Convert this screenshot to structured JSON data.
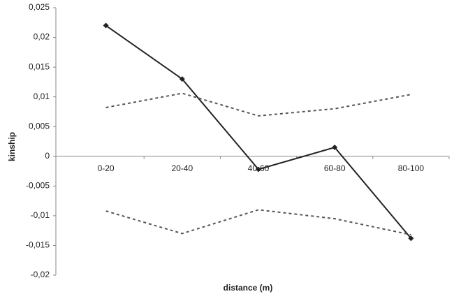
{
  "chart_data": {
    "type": "line",
    "x_label": "distance (m)",
    "y_label": "kinship",
    "categories": [
      "0-20",
      "20-40",
      "40-60",
      "60-80",
      "80-100"
    ],
    "series": [
      {
        "color": "#222222",
        "style": "solid",
        "marker": "diamond",
        "values": [
          0.022,
          0.013,
          -0.0022,
          0.0015,
          -0.0138
        ]
      },
      {
        "color": "#555555",
        "style": "dashed",
        "values": [
          0.0082,
          0.0106,
          0.0068,
          0.008,
          0.0104
        ]
      },
      {
        "color": "#555555",
        "style": "dashed",
        "values": [
          -0.0092,
          -0.013,
          -0.009,
          -0.0105,
          -0.0132
        ]
      }
    ],
    "ylim": [
      -0.02,
      0.025
    ],
    "yticks": [
      {
        "value": -0.02,
        "label": "-0,02"
      },
      {
        "value": -0.015,
        "label": "-0,015"
      },
      {
        "value": -0.01,
        "label": "-0,01"
      },
      {
        "value": -0.005,
        "label": "-0,005"
      },
      0,
      {
        "value": 0.005,
        "label": "0,005"
      },
      {
        "value": 0.01,
        "label": "0,01"
      },
      {
        "value": 0.015,
        "label": "0,015"
      },
      {
        "value": 0.02,
        "label": "0,02"
      },
      {
        "value": 0.025,
        "label": "0,025"
      }
    ],
    "grid": false
  }
}
